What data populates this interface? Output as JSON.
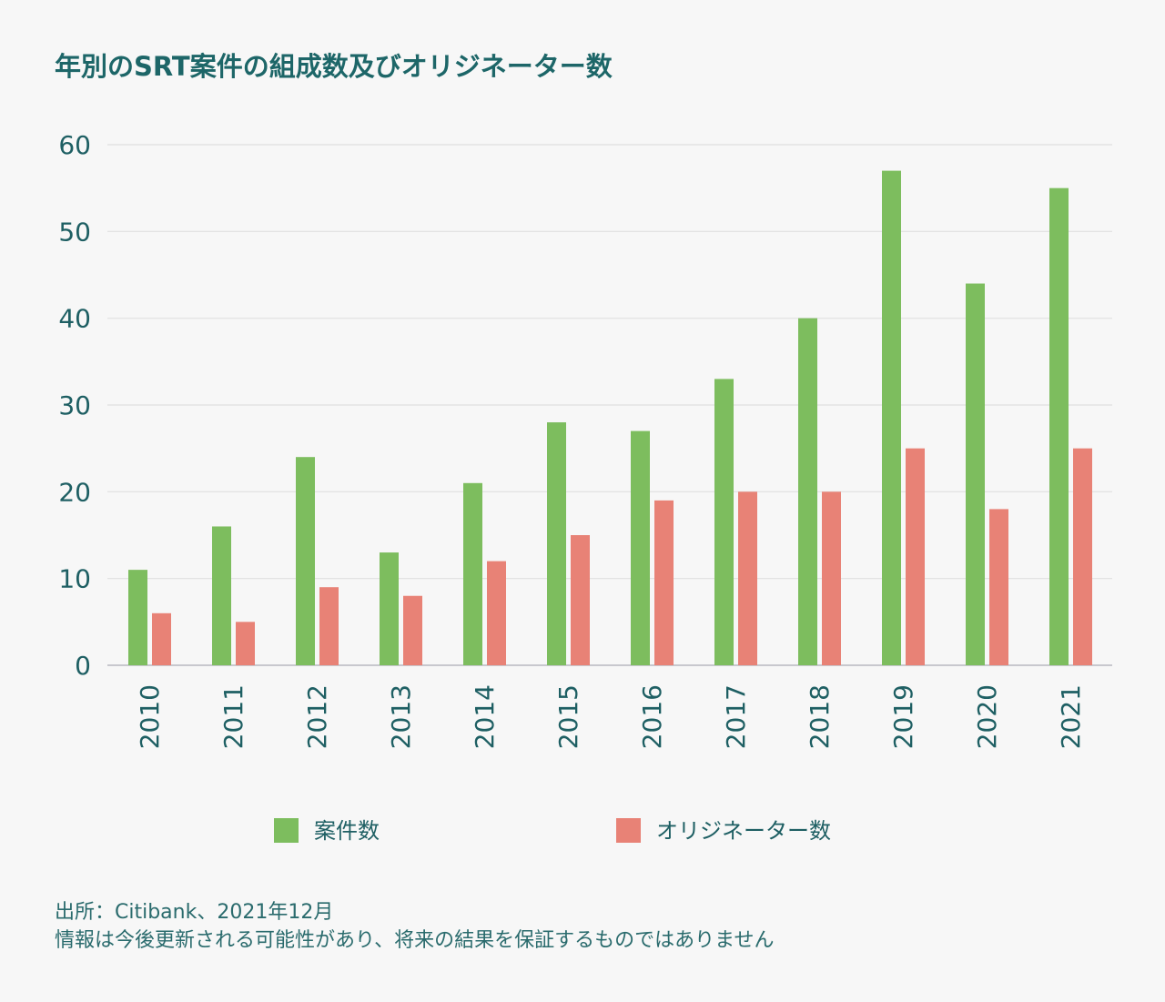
{
  "chart_data": {
    "type": "bar",
    "title": "年別のSRT案件の組成数及びオリジネーター数",
    "categories": [
      "2010",
      "2011",
      "2012",
      "2013",
      "2014",
      "2015",
      "2016",
      "2017",
      "2018",
      "2019",
      "2020",
      "2021"
    ],
    "series": [
      {
        "name": "案件数",
        "color": "#7dbd5e",
        "values": [
          11,
          16,
          24,
          13,
          21,
          28,
          27,
          33,
          40,
          57,
          44,
          55
        ]
      },
      {
        "name": "オリジネーター数",
        "color": "#e88276",
        "values": [
          6,
          5,
          9,
          8,
          12,
          15,
          19,
          20,
          20,
          25,
          18,
          25
        ]
      }
    ],
    "xlabel": "",
    "ylabel": "",
    "ylim": [
      0,
      60
    ],
    "yticks": [
      0,
      10,
      20,
      30,
      40,
      50,
      60
    ],
    "grid": true,
    "legend": "bottom"
  },
  "footer": {
    "source": "出所：Citibank、2021年12月",
    "disclaimer": "情報は今後更新される可能性があり、将来の結果を保証するものではありません"
  }
}
